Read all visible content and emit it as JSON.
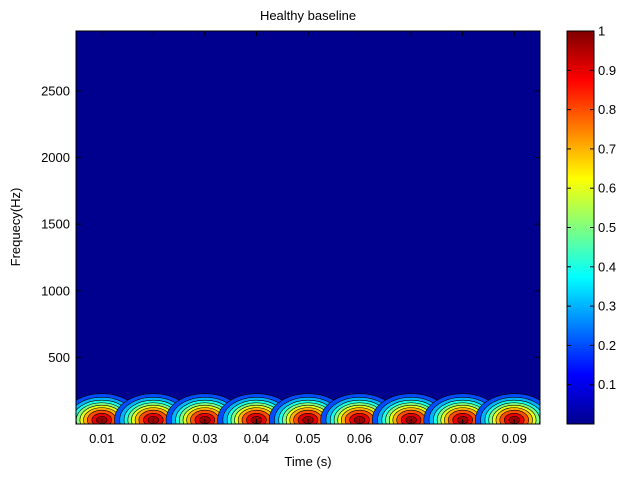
{
  "chart_data": {
    "type": "heatmap",
    "title": "Healthy baseline",
    "xlabel": "Time (s)",
    "ylabel": "Frequecy(Hz)",
    "xlim": [
      0.005,
      0.095
    ],
    "ylim": [
      0,
      2950
    ],
    "x_ticks": [
      0.01,
      0.02,
      0.03,
      0.04,
      0.05,
      0.06,
      0.07,
      0.08,
      0.09
    ],
    "x_tick_labels": [
      "0.01",
      "0.02",
      "0.03",
      "0.04",
      "0.05",
      "0.06",
      "0.07",
      "0.08",
      "0.09"
    ],
    "y_ticks": [
      500,
      1000,
      1500,
      2000,
      2500
    ],
    "y_tick_labels": [
      "500",
      "1000",
      "1500",
      "2000",
      "2500"
    ],
    "colorbar": {
      "range": [
        0,
        1
      ],
      "colormap": "jet",
      "ticks": [
        0.1,
        0.2,
        0.3,
        0.4,
        0.5,
        0.6,
        0.7,
        0.8,
        0.9,
        1
      ],
      "tick_labels": [
        "0.1",
        "0.2",
        "0.3",
        "0.4",
        "0.5",
        "0.6",
        "0.7",
        "0.8",
        "0.9",
        "1"
      ]
    },
    "background_value": 0,
    "background_color": "#00008f",
    "low_band": {
      "y_range": [
        0,
        130
      ],
      "value": 0.12
    },
    "peaks": [
      {
        "time": 0.01,
        "frequency": 30,
        "value": 1
      },
      {
        "time": 0.02,
        "frequency": 30,
        "value": 1
      },
      {
        "time": 0.03,
        "frequency": 30,
        "value": 1
      },
      {
        "time": 0.04,
        "frequency": 30,
        "value": 1
      },
      {
        "time": 0.05,
        "frequency": 30,
        "value": 1
      },
      {
        "time": 0.06,
        "frequency": 30,
        "value": 1
      },
      {
        "time": 0.07,
        "frequency": 30,
        "value": 1
      },
      {
        "time": 0.08,
        "frequency": 30,
        "value": 1
      },
      {
        "time": 0.09,
        "frequency": 30,
        "value": 1
      }
    ],
    "peak_spread": {
      "time": 0.0042,
      "frequency": 110
    }
  }
}
